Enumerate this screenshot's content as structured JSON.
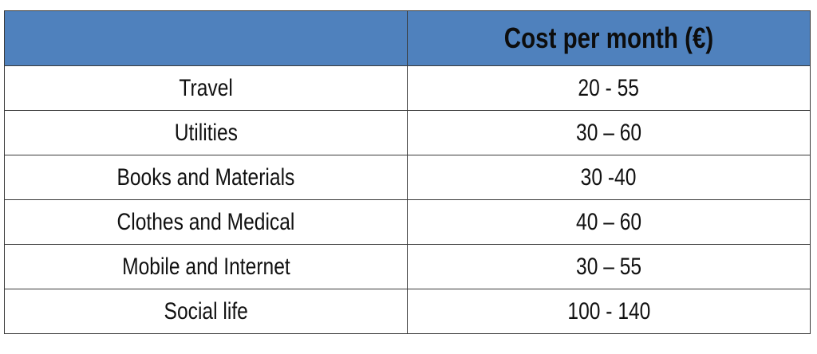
{
  "table": {
    "header": {
      "category": "",
      "cost": "Cost per month (€)"
    },
    "header_color": "#4f81bd",
    "rows": [
      {
        "category": "Travel",
        "cost": "20 - 55"
      },
      {
        "category": "Utilities",
        "cost": "30 – 60"
      },
      {
        "category": "Books and Materials",
        "cost": "30 -40"
      },
      {
        "category": "Clothes and Medical",
        "cost": "40 – 60"
      },
      {
        "category": "Mobile and Internet",
        "cost": "30 – 55"
      },
      {
        "category": "Social life",
        "cost": "100 - 140"
      }
    ]
  }
}
